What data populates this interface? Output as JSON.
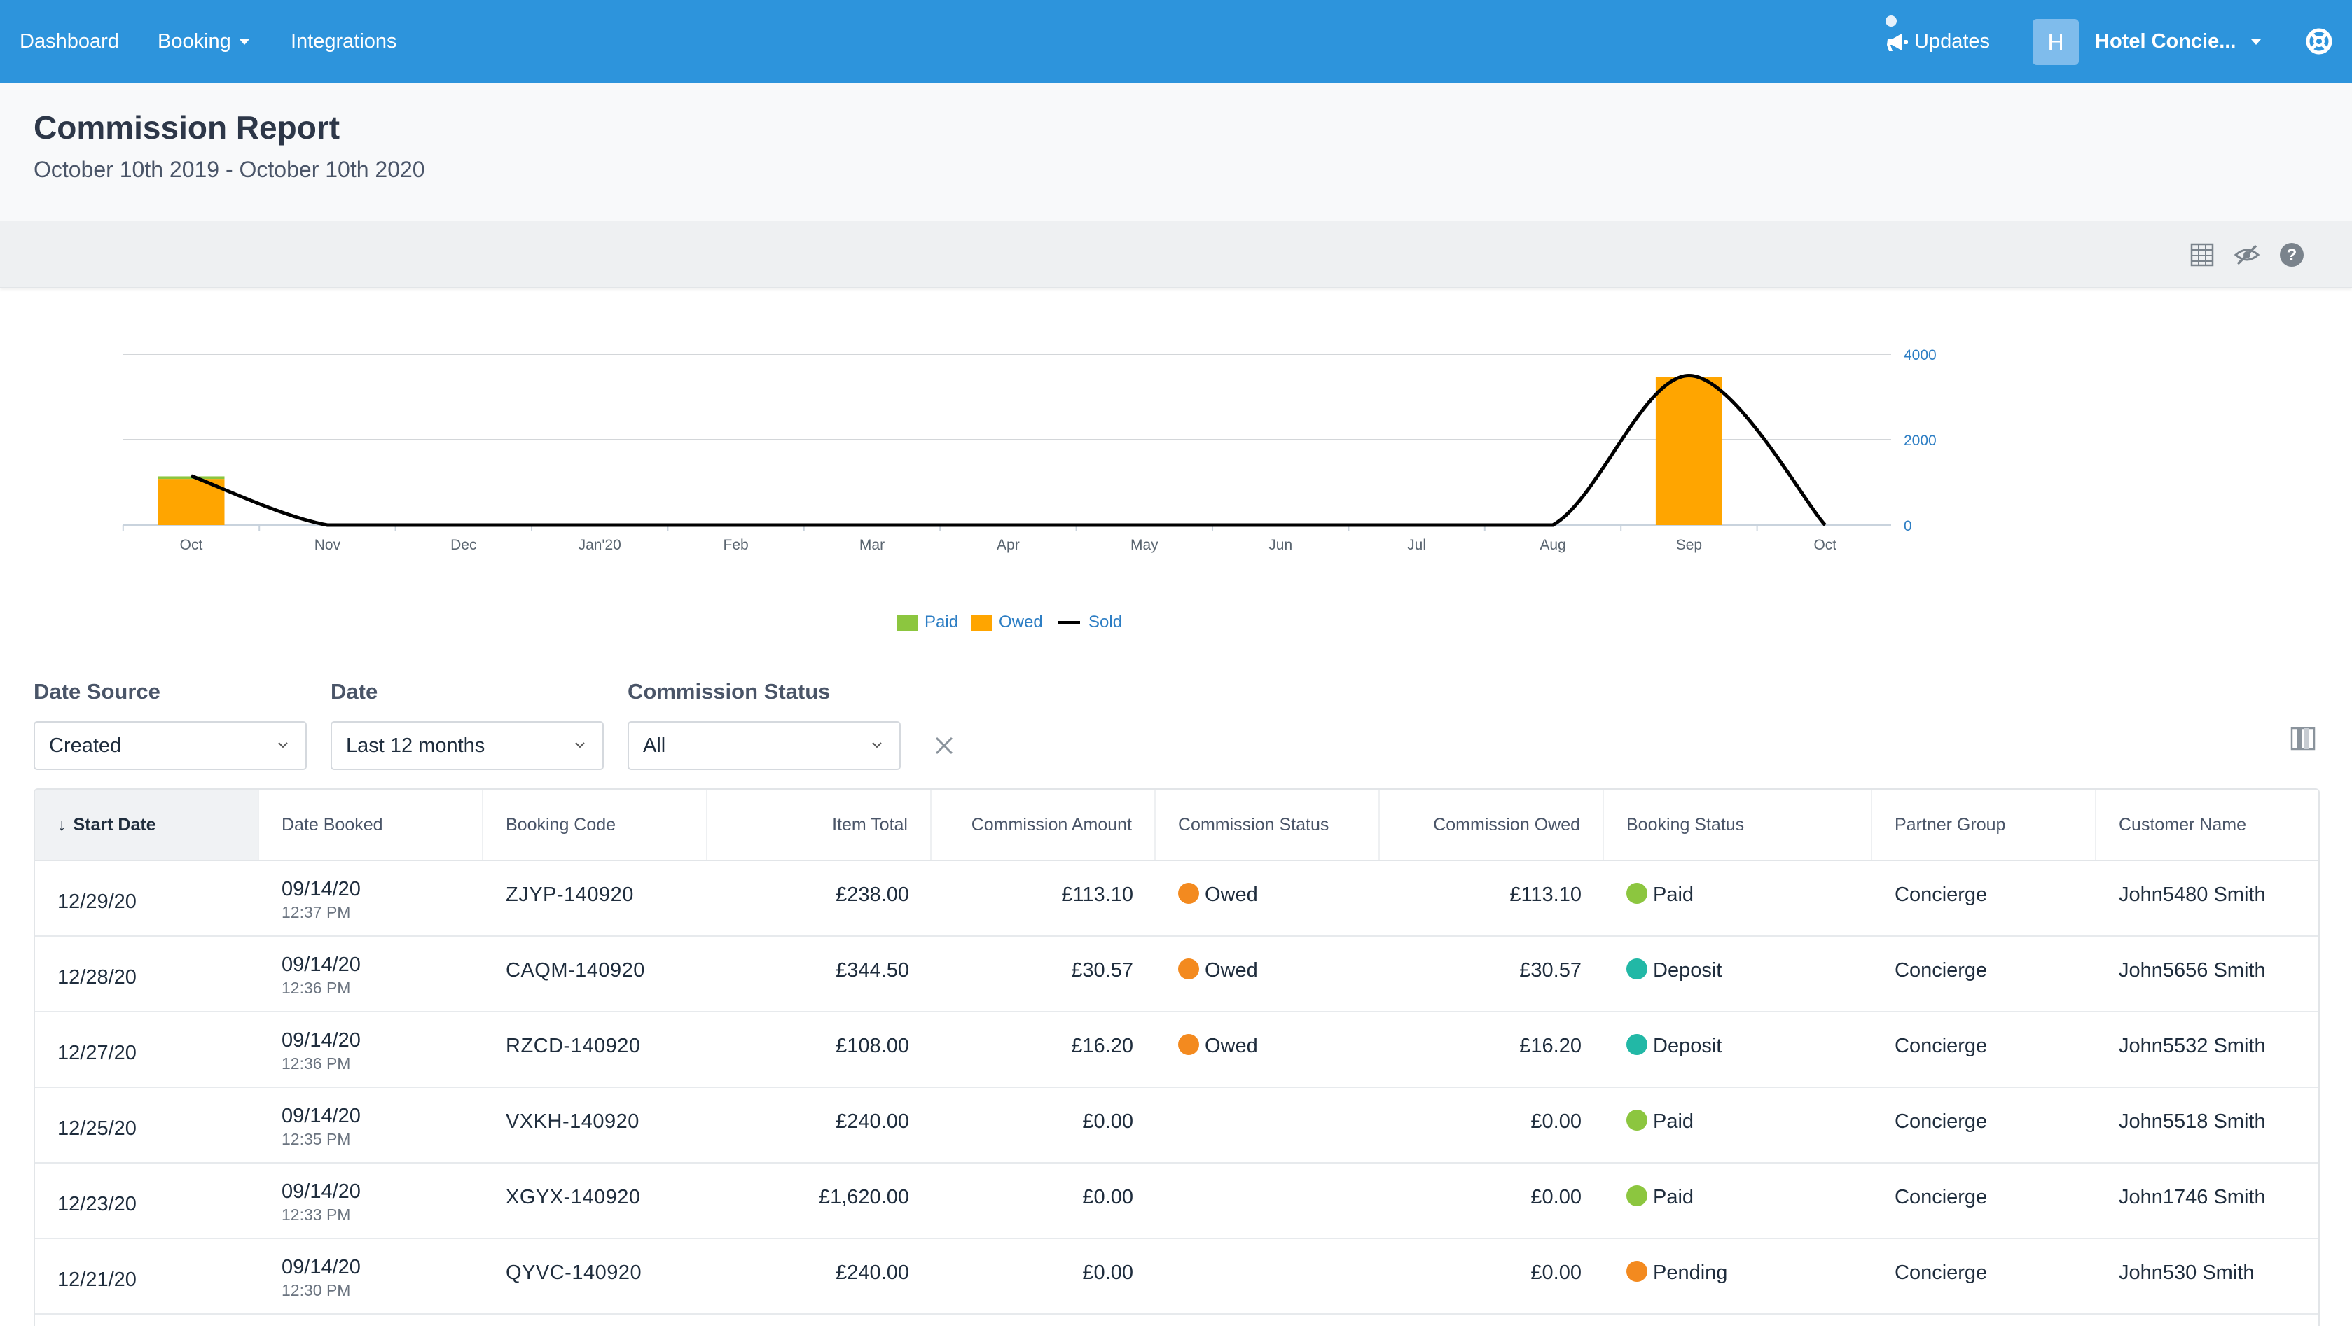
{
  "nav": {
    "items": [
      {
        "label": "Dashboard"
      },
      {
        "label": "Booking"
      },
      {
        "label": "Integrations"
      }
    ],
    "updates_label": "Updates",
    "avatar_letter": "H",
    "account_name": "Hotel Concie..."
  },
  "header": {
    "title": "Commission Report",
    "date_range": "October 10th 2019 - October 10th 2020"
  },
  "toolbar": {
    "icons": [
      "table-icon",
      "hide-chart-icon",
      "help-icon"
    ]
  },
  "chart_data": {
    "type": "bar",
    "categories": [
      "Oct",
      "Nov",
      "Dec",
      "Jan'20",
      "Feb",
      "Mar",
      "Apr",
      "May",
      "Jun",
      "Jul",
      "Aug",
      "Sep",
      "Oct"
    ],
    "series": [
      {
        "name": "Paid",
        "type": "bar",
        "color": "#8cc63f",
        "values": [
          60,
          0,
          0,
          0,
          0,
          0,
          0,
          0,
          0,
          0,
          0,
          0,
          0
        ]
      },
      {
        "name": "Owed",
        "type": "bar",
        "color": "#ffa500",
        "values": [
          1080,
          0,
          0,
          0,
          0,
          0,
          0,
          0,
          0,
          0,
          0,
          3470,
          0
        ]
      },
      {
        "name": "Sold",
        "type": "line",
        "color": "#000000",
        "values": [
          1150,
          0,
          0,
          0,
          0,
          0,
          0,
          0,
          0,
          0,
          0,
          3500,
          0
        ]
      }
    ],
    "yticks": [
      "4000",
      "2000",
      "0"
    ],
    "ylim": [
      0,
      4000
    ],
    "grid": true,
    "legend_position": "bottom-center",
    "xlabel": "",
    "ylabel": ""
  },
  "filters": {
    "date_source": {
      "label": "Date Source",
      "value": "Created"
    },
    "date": {
      "label": "Date",
      "value": "Last 12 months"
    },
    "commission_status": {
      "label": "Commission Status",
      "value": "All"
    }
  },
  "table": {
    "columns": [
      "Start Date",
      "Date Booked",
      "Booking Code",
      "Item Total",
      "Commission Amount",
      "Commission Status",
      "Commission Owed",
      "Booking Status",
      "Partner Group",
      "Customer Name"
    ],
    "sort_column": "Start Date",
    "status_colors": {
      "Owed": "#f38a1f",
      "Paid": "#8cc63f",
      "Deposit": "#22b8a6",
      "Pending": "#f38a1f"
    },
    "rows": [
      {
        "start_date": "12/29/20",
        "booked_date": "09/14/20",
        "booked_time": "12:37 PM",
        "code": "ZJYP-140920",
        "item_total": "£238.00",
        "commission_amount": "£113.10",
        "commission_status": "Owed",
        "commission_owed": "£113.10",
        "booking_status": "Paid",
        "partner_group": "Concierge",
        "customer": "John5480 Smith"
      },
      {
        "start_date": "12/28/20",
        "booked_date": "09/14/20",
        "booked_time": "12:36 PM",
        "code": "CAQM-140920",
        "item_total": "£344.50",
        "commission_amount": "£30.57",
        "commission_status": "Owed",
        "commission_owed": "£30.57",
        "booking_status": "Deposit",
        "partner_group": "Concierge",
        "customer": "John5656 Smith"
      },
      {
        "start_date": "12/27/20",
        "booked_date": "09/14/20",
        "booked_time": "12:36 PM",
        "code": "RZCD-140920",
        "item_total": "£108.00",
        "commission_amount": "£16.20",
        "commission_status": "Owed",
        "commission_owed": "£16.20",
        "booking_status": "Deposit",
        "partner_group": "Concierge",
        "customer": "John5532 Smith"
      },
      {
        "start_date": "12/25/20",
        "booked_date": "09/14/20",
        "booked_time": "12:35 PM",
        "code": "VXKH-140920",
        "item_total": "£240.00",
        "commission_amount": "£0.00",
        "commission_status": "",
        "commission_owed": "£0.00",
        "booking_status": "Paid",
        "partner_group": "Concierge",
        "customer": "John5518 Smith"
      },
      {
        "start_date": "12/23/20",
        "booked_date": "09/14/20",
        "booked_time": "12:33 PM",
        "code": "XGYX-140920",
        "item_total": "£1,620.00",
        "commission_amount": "£0.00",
        "commission_status": "",
        "commission_owed": "£0.00",
        "booking_status": "Paid",
        "partner_group": "Concierge",
        "customer": "John1746 Smith"
      },
      {
        "start_date": "12/21/20",
        "booked_date": "09/14/20",
        "booked_time": "12:30 PM",
        "code": "QYVC-140920",
        "item_total": "£240.00",
        "commission_amount": "£0.00",
        "commission_status": "",
        "commission_owed": "£0.00",
        "booking_status": "Pending",
        "partner_group": "Concierge",
        "customer": "John530 Smith"
      }
    ]
  }
}
